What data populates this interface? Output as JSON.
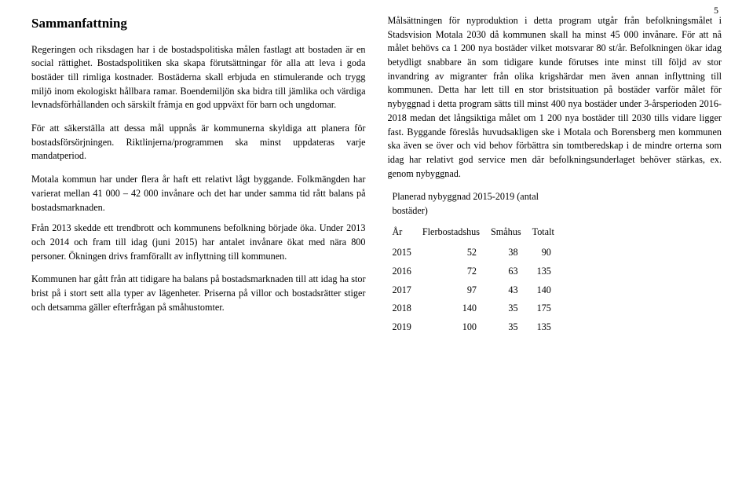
{
  "page_number": "5",
  "left": {
    "heading": "Sammanfattning",
    "p1": "Regeringen och riksdagen har i de bostadspolitiska målen fastlagt att bostaden är en social rättighet. Bostadspolitiken ska skapa förutsättningar för alla att leva i goda bostäder till rimliga kostnader. Bostäderna skall erbjuda en stimulerande och trygg miljö inom ekologiskt hållbara ramar. Boendemiljön ska bidra till jämlika och värdiga levnadsförhållanden och särskilt främja en god uppväxt för barn och ungdomar.",
    "p2": "För att säkerställa att dessa mål uppnås är kommunerna skyldiga att planera för bostadsförsörjningen. Riktlinjerna/programmen ska minst uppdateras varje mandatperiod.",
    "p3": "Motala kommun har under flera år haft ett relativt lågt byggande. Folkmängden har varierat mellan 41 000 – 42 000 invånare och det har under samma tid rått balans på bostadsmarknaden.",
    "p4": "Från 2013 skedde ett trendbrott och kommunens befolkning började öka. Under 2013 och 2014 och fram till idag (juni 2015) har antalet invånare ökat med nära 800 personer. Ökningen drivs framförallt av inflyttning till kommunen.",
    "p5": "Kommunen har gått från att tidigare ha balans på bostadsmarknaden till att idag ha stor brist på i stort sett alla typer av lägenheter. Priserna på villor och bostadsrätter stiger och detsamma gäller efterfrågan på småhustomter."
  },
  "right": {
    "p1": "Målsättningen för nyproduktion i detta program utgår från befolkningsmålet i Stadsvision Motala 2030 då kommunen skall ha minst 45 000 invånare. För att nå målet behövs ca 1 200 nya bostäder vilket motsvarar 80 st/år. Befolkningen ökar idag betydligt snabbare än som tidigare kunde förutses inte minst till följd av stor invandring av migranter från olika krigshärdar men även annan inflyttning till kommunen. Detta har lett till en stor bristsituation på bostäder varför målet för nybyggnad i detta program sätts till minst 400 nya bostäder under 3-årsperioden 2016-2018 medan det långsiktiga målet om 1 200 nya bostäder till 2030 tills vidare ligger fast. Byggande föreslås huvudsakligen ske i Motala och Borensberg men kommunen ska även se över och vid behov förbättra sin tomtberedskap i de mindre orterna som idag har relativt god service men där befolkningsunderlaget behöver stärkas, ex. genom nybyggnad.",
    "table_title1": "Planerad nybyggnad 2015-2019 (antal",
    "table_title2": "bostäder)",
    "table": {
      "columns": [
        "År",
        "Flerbostadshus",
        "Småhus",
        "Totalt"
      ],
      "rows": [
        [
          "2015",
          "52",
          "38",
          "90"
        ],
        [
          "2016",
          "72",
          "63",
          "135"
        ],
        [
          "2017",
          "97",
          "43",
          "140"
        ],
        [
          "2018",
          "140",
          "35",
          "175"
        ],
        [
          "2019",
          "100",
          "35",
          "135"
        ]
      ]
    }
  }
}
